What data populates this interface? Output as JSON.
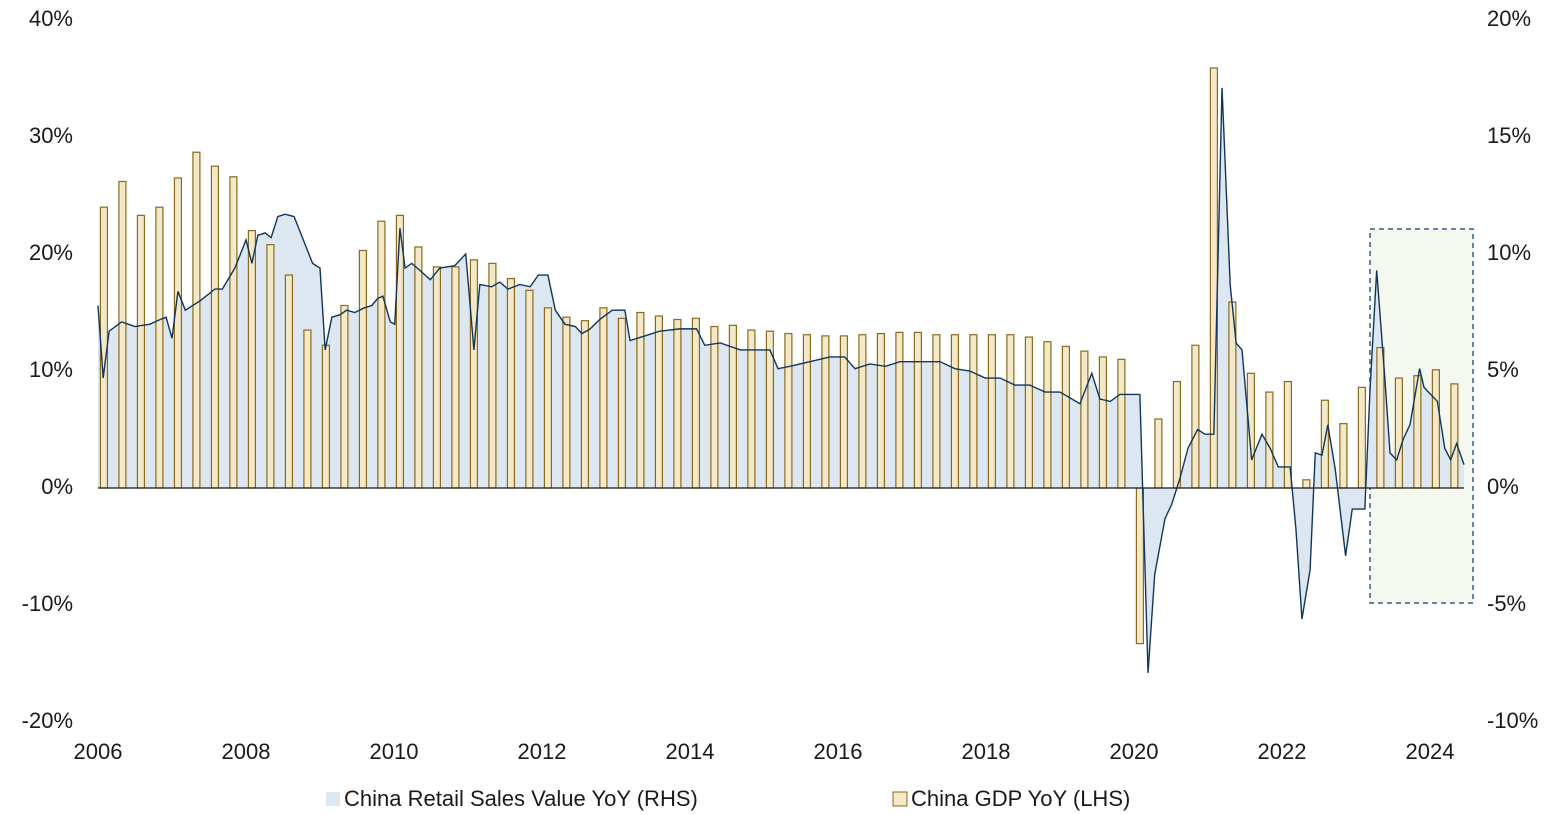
{
  "chart_data": {
    "type": "combo",
    "xlim": [
      2006,
      2024.46
    ],
    "xticks": [
      2006,
      2008,
      2010,
      2012,
      2014,
      2016,
      2018,
      2020,
      2022,
      2024
    ],
    "ylim": [
      -20,
      40
    ],
    "yticks": [
      {
        "value": -20,
        "label": "-20%"
      },
      {
        "value": -10,
        "label": "-10%"
      },
      {
        "value": 0,
        "label": "0%"
      },
      {
        "value": 10,
        "label": "10%"
      },
      {
        "value": 20,
        "label": "20%"
      },
      {
        "value": 30,
        "label": "30%"
      },
      {
        "value": 40,
        "label": "40%"
      }
    ],
    "y2lim": [
      -10,
      20
    ],
    "y2ticks": [
      {
        "value": -10,
        "label": "-10%"
      },
      {
        "value": -5,
        "label": "-5%"
      },
      {
        "value": 0,
        "label": "0%"
      },
      {
        "value": 5,
        "label": "5%"
      },
      {
        "value": 10,
        "label": "10%"
      },
      {
        "value": 15,
        "label": "15%"
      },
      {
        "value": 20,
        "label": "20%"
      }
    ],
    "series": [
      {
        "name": "China Retail Sales Value YoY (RHS)",
        "type": "area",
        "axis": "y2",
        "color": "#12355b",
        "fill": "#dce7f1",
        "x": [
          2006.0,
          2006.07,
          2006.15,
          2006.32,
          2006.5,
          2006.7,
          2006.84,
          2006.92,
          2007.0,
          2007.08,
          2007.18,
          2007.38,
          2007.58,
          2007.68,
          2007.85,
          2008.0,
          2008.08,
          2008.16,
          2008.26,
          2008.34,
          2008.43,
          2008.53,
          2008.65,
          2008.8,
          2008.9,
          2009.0,
          2009.07,
          2009.16,
          2009.27,
          2009.36,
          2009.47,
          2009.6,
          2009.7,
          2009.78,
          2009.85,
          2009.95,
          2010.01,
          2010.08,
          2010.15,
          2010.24,
          2010.35,
          2010.49,
          2010.62,
          2010.82,
          2010.97,
          2011.08,
          2011.16,
          2011.32,
          2011.43,
          2011.54,
          2011.7,
          2011.84,
          2011.95,
          2012.08,
          2012.18,
          2012.31,
          2012.45,
          2012.54,
          2012.65,
          2012.78,
          2012.95,
          2013.12,
          2013.19,
          2013.39,
          2013.59,
          2013.86,
          2014.09,
          2014.2,
          2014.41,
          2014.68,
          2014.95,
          2015.08,
          2015.19,
          2015.35,
          2015.62,
          2015.89,
          2016.09,
          2016.23,
          2016.43,
          2016.64,
          2016.84,
          2017.11,
          2017.38,
          2017.58,
          2017.78,
          2017.99,
          2018.19,
          2018.39,
          2018.59,
          2018.8,
          2019.0,
          2019.27,
          2019.43,
          2019.54,
          2019.68,
          2019.81,
          2020.08,
          2020.19,
          2020.28,
          2020.42,
          2020.51,
          2020.62,
          2020.73,
          2020.86,
          2020.96,
          2021.08,
          2021.19,
          2021.3,
          2021.38,
          2021.46,
          2021.59,
          2021.73,
          2021.84,
          2021.95,
          2022.11,
          2022.19,
          2022.27,
          2022.38,
          2022.45,
          2022.54,
          2022.62,
          2022.72,
          2022.86,
          2022.95,
          2023.12,
          2023.19,
          2023.28,
          2023.39,
          2023.46,
          2023.55,
          2023.64,
          2023.73,
          2023.86,
          2023.92,
          2024.1,
          2024.2,
          2024.28,
          2024.36,
          2024.46
        ],
        "values": [
          7.8,
          4.7,
          6.7,
          7.1,
          6.9,
          7.0,
          7.2,
          7.3,
          6.4,
          8.4,
          7.6,
          8.0,
          8.5,
          8.5,
          9.4,
          10.6,
          9.6,
          10.8,
          10.9,
          10.7,
          11.6,
          11.7,
          11.6,
          10.4,
          9.6,
          9.4,
          5.9,
          7.3,
          7.4,
          7.6,
          7.5,
          7.7,
          7.8,
          8.1,
          8.2,
          7.1,
          7.0,
          11.1,
          9.4,
          9.6,
          9.3,
          8.9,
          9.4,
          9.5,
          10.0,
          5.9,
          8.7,
          8.6,
          8.8,
          8.5,
          8.7,
          8.6,
          9.1,
          9.1,
          7.6,
          7.0,
          6.9,
          6.6,
          6.8,
          7.2,
          7.6,
          7.6,
          6.3,
          6.5,
          6.7,
          6.8,
          6.8,
          6.1,
          6.2,
          5.9,
          5.9,
          5.9,
          5.1,
          5.2,
          5.4,
          5.6,
          5.6,
          5.1,
          5.3,
          5.2,
          5.4,
          5.4,
          5.4,
          5.1,
          5.0,
          4.7,
          4.7,
          4.4,
          4.4,
          4.1,
          4.1,
          3.6,
          4.9,
          3.8,
          3.7,
          4.0,
          4.0,
          -7.9,
          -3.7,
          -1.3,
          -0.7,
          0.4,
          1.7,
          2.5,
          2.3,
          2.3,
          17.1,
          8.7,
          6.2,
          5.9,
          1.2,
          2.3,
          1.7,
          0.9,
          0.9,
          -1.8,
          -5.6,
          -3.5,
          1.5,
          1.4,
          2.7,
          0.8,
          -2.9,
          -0.9,
          -0.9,
          4.2,
          9.3,
          4.7,
          1.5,
          1.2,
          2.1,
          2.7,
          5.1,
          4.3,
          3.7,
          1.7,
          1.2,
          1.9,
          1.0
        ]
      },
      {
        "name": "China GDP YoY (LHS)",
        "type": "bar",
        "axis": "y",
        "color": "#8b6a1e",
        "fill": "#f3e9c9",
        "x": [
          2006.08,
          2006.33,
          2006.58,
          2006.83,
          2007.08,
          2007.33,
          2007.58,
          2007.83,
          2008.08,
          2008.33,
          2008.58,
          2008.83,
          2009.08,
          2009.33,
          2009.58,
          2009.83,
          2010.08,
          2010.33,
          2010.58,
          2010.83,
          2011.08,
          2011.33,
          2011.58,
          2011.83,
          2012.08,
          2012.33,
          2012.58,
          2012.83,
          2013.08,
          2013.33,
          2013.58,
          2013.83,
          2014.08,
          2014.33,
          2014.58,
          2014.83,
          2015.08,
          2015.33,
          2015.58,
          2015.83,
          2016.08,
          2016.33,
          2016.58,
          2016.83,
          2017.08,
          2017.33,
          2017.58,
          2017.83,
          2018.08,
          2018.33,
          2018.58,
          2018.83,
          2019.08,
          2019.33,
          2019.58,
          2019.83,
          2020.08,
          2020.33,
          2020.58,
          2020.83,
          2021.08,
          2021.33,
          2021.58,
          2021.83,
          2022.08,
          2022.33,
          2022.58,
          2022.83,
          2023.08,
          2023.33,
          2023.58,
          2023.83,
          2024.08,
          2024.33
        ],
        "values": [
          24.0,
          26.2,
          23.3,
          24.0,
          26.5,
          28.7,
          27.5,
          26.6,
          22.0,
          20.8,
          18.2,
          13.5,
          12.2,
          15.6,
          20.3,
          22.8,
          23.3,
          20.6,
          18.9,
          18.9,
          19.5,
          19.2,
          17.9,
          16.9,
          15.4,
          14.6,
          14.3,
          15.4,
          14.5,
          15.0,
          14.7,
          14.4,
          14.5,
          13.8,
          13.9,
          13.5,
          13.4,
          13.2,
          13.1,
          13.0,
          13.0,
          13.1,
          13.2,
          13.3,
          13.3,
          13.1,
          13.1,
          13.1,
          13.1,
          13.1,
          12.9,
          12.5,
          12.1,
          11.7,
          11.2,
          11.0,
          -13.3,
          5.9,
          9.1,
          12.2,
          35.9,
          15.9,
          9.8,
          8.2,
          9.1,
          0.7,
          7.5,
          5.5,
          8.6,
          12.0,
          9.4,
          9.6,
          10.1,
          8.9
        ]
      }
    ],
    "grid": false
  }
}
